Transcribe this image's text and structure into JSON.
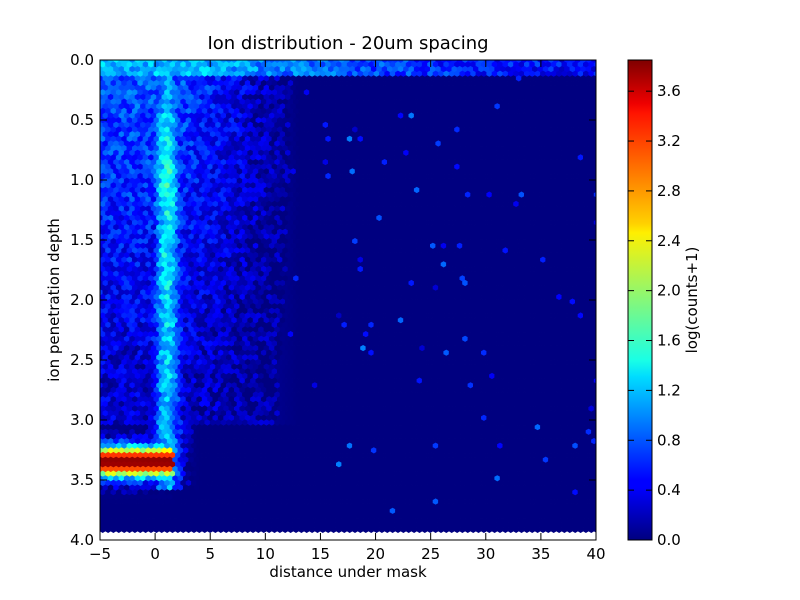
{
  "chart_data": {
    "type": "heatmap",
    "plot_kind": "hexbin",
    "title": "Ion distribution - 20um spacing",
    "xlabel": "distance under mask",
    "ylabel": "ion penetration depth",
    "xlim": [
      -5,
      40
    ],
    "ylim": [
      4.0,
      0.0
    ],
    "y_inverted": true,
    "x_ticks": [
      "−5",
      "0",
      "5",
      "10",
      "15",
      "20",
      "25",
      "30",
      "35",
      "40"
    ],
    "y_ticks": [
      "0.0",
      "0.5",
      "1.0",
      "1.5",
      "2.0",
      "2.5",
      "3.0",
      "3.5",
      "4.0"
    ],
    "colorbar": {
      "label": "log(counts+1)",
      "range": [
        0.0,
        3.85
      ],
      "ticks": [
        "0.0",
        "0.4",
        "0.8",
        "1.2",
        "1.6",
        "2.0",
        "2.4",
        "2.8",
        "3.2",
        "3.6"
      ],
      "colormap": "jet"
    },
    "features": [
      {
        "region": "background (x > 12, depth 0.1–3.95)",
        "value_log_counts": 0.0
      },
      {
        "region": "near-surface band (depth 0–0.15, all x)",
        "value_log_counts": 0.9
      },
      {
        "region": "diffuse scatter (x −5 to 12, depth 0.2–3.0)",
        "value_log_counts": 0.7
      },
      {
        "region": "vertical streak (x ≈ 1, depth 0.3–3.6)",
        "value_log_counts": 1.4
      },
      {
        "region": "implant peak (x −5 to 1.5, depth ≈ 3.35)",
        "value_log_counts": 3.8
      }
    ]
  }
}
